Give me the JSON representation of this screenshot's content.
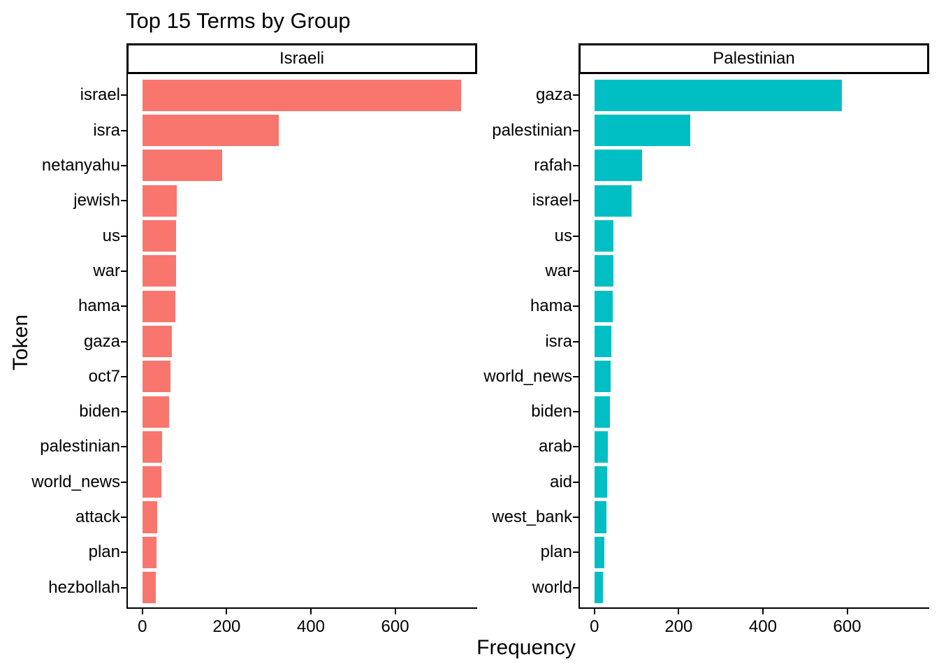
{
  "chart_data": {
    "type": "bar",
    "orientation": "horizontal",
    "title": "Top 15 Terms by Group",
    "xlabel": "Frequency",
    "ylabel": "Token",
    "grid": false,
    "x_ticks": [
      0,
      200,
      400,
      600
    ],
    "x_tick_labels": [
      "0",
      "200",
      "400",
      "600"
    ],
    "xlim": [
      0,
      793
    ],
    "facets": [
      {
        "label": "Israeli",
        "color": "#F8766D",
        "tokens": [
          "israel",
          "isra",
          "netanyahu",
          "jewish",
          "us",
          "war",
          "hama",
          "gaza",
          "oct7",
          "biden",
          "palestinian",
          "world_news",
          "attack",
          "plan",
          "hezbollah"
        ],
        "values": [
          757,
          324,
          190,
          82,
          80,
          80,
          78,
          70,
          66,
          64,
          47,
          45,
          35,
          33,
          31
        ]
      },
      {
        "label": "Palestinian",
        "color": "#00BFC4",
        "tokens": [
          "gaza",
          "palestinian",
          "rafah",
          "israel",
          "us",
          "war",
          "hama",
          "isra",
          "world_news",
          "biden",
          "arab",
          "aid",
          "west_bank",
          "plan",
          "world"
        ],
        "values": [
          588,
          228,
          113,
          88,
          45,
          45,
          43,
          40,
          39,
          36,
          31,
          30,
          29,
          24,
          20
        ]
      }
    ]
  }
}
